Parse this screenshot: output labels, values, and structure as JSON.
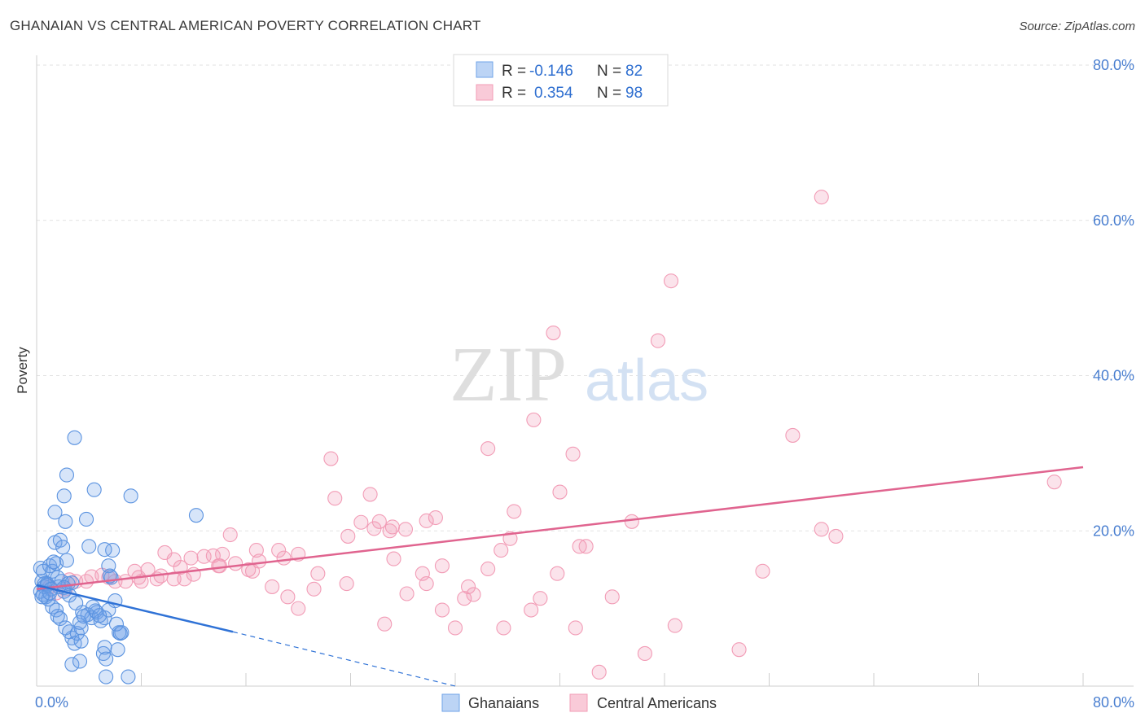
{
  "title": "GHANAIAN VS CENTRAL AMERICAN POVERTY CORRELATION CHART",
  "source": "Source: ZipAtlas.com",
  "watermark": {
    "zip": "ZIP",
    "atlas": "atlas"
  },
  "colors": {
    "blue": "#6fa3e8",
    "blue_line": "#2f72d6",
    "pink": "#f29cb6",
    "pink_line": "#e0648f",
    "accent_text": "#2f6fd0"
  },
  "legend": {
    "rows": [
      {
        "r_label": "R = ",
        "r_value": "-0.146",
        "n_label": "N = ",
        "n_value": "82"
      },
      {
        "r_label": "R = ",
        "r_value": "0.354",
        "n_label": "N = ",
        "n_value": "98"
      }
    ]
  },
  "chart_data": {
    "type": "scatter",
    "title": "GHANAIAN VS CENTRAL AMERICAN POVERTY CORRELATION CHART",
    "xlabel": "",
    "ylabel": "Poverty",
    "xlim": [
      0,
      80
    ],
    "ylim": [
      0,
      80
    ],
    "x_tick_labels": [
      "0.0%",
      "80.0%"
    ],
    "y_ticks": [
      20,
      40,
      60,
      80
    ],
    "y_tick_labels": [
      "20.0%",
      "40.0%",
      "60.0%",
      "80.0%"
    ],
    "grid": true,
    "legend_position": "bottom",
    "series": [
      {
        "name": "Ghanaians",
        "color": "#6fa3e8",
        "trend": {
          "x": [
            0,
            15
          ],
          "y": [
            13.0,
            7.0
          ],
          "dashed_extension": {
            "x": [
              15,
              32
            ],
            "y": [
              7.0,
              0.0
            ]
          }
        },
        "points": [
          [
            0.3,
            15.2
          ],
          [
            0.5,
            14.8
          ],
          [
            0.4,
            13.5
          ],
          [
            0.6,
            12.8
          ],
          [
            0.3,
            12.2
          ],
          [
            0.7,
            11.5
          ],
          [
            0.5,
            11.8
          ],
          [
            0.8,
            13.2
          ],
          [
            1.0,
            15.5
          ],
          [
            1.2,
            14.8
          ],
          [
            1.5,
            15.8
          ],
          [
            1.3,
            16.0
          ],
          [
            1.4,
            18.5
          ],
          [
            1.8,
            18.8
          ],
          [
            2.0,
            17.9
          ],
          [
            2.3,
            16.2
          ],
          [
            1.6,
            14.0
          ],
          [
            1.7,
            12.8
          ],
          [
            2.1,
            12.2
          ],
          [
            1.9,
            13.5
          ],
          [
            2.4,
            13.2
          ],
          [
            1.2,
            10.2
          ],
          [
            1.5,
            9.8
          ],
          [
            1.6,
            9.0
          ],
          [
            1.8,
            8.7
          ],
          [
            2.2,
            7.5
          ],
          [
            2.5,
            7.0
          ],
          [
            2.7,
            6.2
          ],
          [
            2.9,
            5.5
          ],
          [
            3.1,
            6.8
          ],
          [
            3.4,
            7.5
          ],
          [
            3.3,
            8.2
          ],
          [
            3.5,
            9.5
          ],
          [
            3.9,
            9.2
          ],
          [
            4.2,
            8.8
          ],
          [
            4.5,
            9.7
          ],
          [
            4.6,
            9.5
          ],
          [
            4.9,
            8.4
          ],
          [
            5.2,
            8.8
          ],
          [
            5.5,
            9.8
          ],
          [
            2.9,
            32.0
          ],
          [
            2.3,
            27.2
          ],
          [
            2.1,
            24.5
          ],
          [
            4.4,
            25.3
          ],
          [
            1.4,
            22.4
          ],
          [
            2.2,
            21.2
          ],
          [
            3.8,
            21.5
          ],
          [
            7.2,
            24.5
          ],
          [
            12.2,
            22.0
          ],
          [
            2.7,
            2.8
          ],
          [
            3.3,
            3.2
          ],
          [
            3.4,
            5.8
          ],
          [
            5.1,
            4.2
          ],
          [
            5.2,
            5.0
          ],
          [
            5.3,
            3.5
          ],
          [
            6.2,
            4.7
          ],
          [
            6.3,
            6.9
          ],
          [
            6.4,
            6.8
          ],
          [
            7.0,
            1.2
          ],
          [
            5.3,
            1.2
          ],
          [
            5.8,
            17.5
          ],
          [
            5.2,
            17.6
          ],
          [
            4.0,
            18.0
          ],
          [
            5.7,
            14.0
          ],
          [
            5.5,
            15.5
          ],
          [
            6.0,
            11.0
          ],
          [
            5.6,
            14.2
          ],
          [
            2.7,
            13.3
          ],
          [
            2.1,
            12.7
          ],
          [
            0.6,
            13.2
          ],
          [
            0.8,
            13.0
          ],
          [
            0.9,
            11.2
          ],
          [
            1.1,
            12.5
          ],
          [
            0.4,
            11.5
          ],
          [
            1.0,
            12.0
          ],
          [
            2.5,
            11.7
          ],
          [
            3.0,
            10.7
          ],
          [
            3.6,
            9.0
          ],
          [
            4.3,
            10.2
          ],
          [
            6.5,
            6.9
          ],
          [
            6.1,
            8.0
          ],
          [
            4.8,
            9.1
          ]
        ]
      },
      {
        "name": "Central Americans",
        "color": "#f29cb6",
        "trend": {
          "x": [
            0,
            80
          ],
          "y": [
            12.5,
            28.2
          ]
        },
        "points": [
          [
            60.0,
            63.0
          ],
          [
            48.5,
            52.2
          ],
          [
            39.5,
            45.5
          ],
          [
            47.5,
            44.5
          ],
          [
            38.0,
            34.3
          ],
          [
            57.8,
            32.3
          ],
          [
            34.5,
            30.6
          ],
          [
            41.0,
            29.9
          ],
          [
            22.5,
            29.3
          ],
          [
            77.8,
            26.3
          ],
          [
            40.0,
            25.0
          ],
          [
            25.5,
            24.7
          ],
          [
            22.8,
            24.2
          ],
          [
            36.5,
            22.5
          ],
          [
            30.5,
            21.7
          ],
          [
            29.8,
            21.3
          ],
          [
            45.5,
            21.2
          ],
          [
            24.8,
            21.1
          ],
          [
            26.2,
            21.2
          ],
          [
            27.2,
            20.5
          ],
          [
            25.8,
            20.3
          ],
          [
            27.0,
            20.0
          ],
          [
            28.2,
            20.2
          ],
          [
            60.0,
            20.2
          ],
          [
            61.1,
            19.3
          ],
          [
            23.8,
            19.3
          ],
          [
            36.2,
            19.0
          ],
          [
            14.8,
            19.5
          ],
          [
            41.5,
            18.0
          ],
          [
            42.0,
            18.0
          ],
          [
            35.5,
            17.5
          ],
          [
            16.8,
            17.5
          ],
          [
            18.5,
            17.5
          ],
          [
            20.0,
            17.0
          ],
          [
            9.8,
            17.2
          ],
          [
            13.5,
            16.8
          ],
          [
            14.2,
            17.0
          ],
          [
            12.8,
            16.7
          ],
          [
            11.8,
            16.5
          ],
          [
            10.5,
            16.3
          ],
          [
            11.0,
            15.3
          ],
          [
            13.9,
            15.5
          ],
          [
            15.2,
            15.8
          ],
          [
            17.0,
            16.1
          ],
          [
            18.9,
            16.5
          ],
          [
            27.3,
            16.4
          ],
          [
            31.0,
            15.5
          ],
          [
            34.5,
            15.1
          ],
          [
            29.5,
            14.5
          ],
          [
            21.5,
            14.5
          ],
          [
            16.5,
            14.8
          ],
          [
            12.0,
            14.4
          ],
          [
            7.5,
            14.8
          ],
          [
            8.5,
            15.0
          ],
          [
            9.5,
            14.2
          ],
          [
            10.5,
            13.8
          ],
          [
            8.0,
            13.5
          ],
          [
            7.8,
            14.0
          ],
          [
            6.0,
            13.5
          ],
          [
            5.0,
            14.3
          ],
          [
            4.2,
            14.1
          ],
          [
            3.8,
            13.5
          ],
          [
            2.5,
            13.7
          ],
          [
            3.0,
            13.5
          ],
          [
            2.2,
            12.5
          ],
          [
            1.5,
            12.0
          ],
          [
            1.0,
            12.8
          ],
          [
            0.8,
            13.0
          ],
          [
            29.8,
            13.2
          ],
          [
            33.0,
            12.8
          ],
          [
            23.7,
            13.2
          ],
          [
            18.0,
            12.8
          ],
          [
            21.2,
            12.5
          ],
          [
            28.3,
            11.9
          ],
          [
            32.7,
            11.3
          ],
          [
            33.4,
            11.8
          ],
          [
            39.8,
            14.5
          ],
          [
            55.5,
            14.8
          ],
          [
            44.0,
            11.5
          ],
          [
            38.5,
            11.3
          ],
          [
            19.2,
            11.5
          ],
          [
            20.0,
            10.0
          ],
          [
            31.0,
            9.8
          ],
          [
            37.8,
            9.8
          ],
          [
            26.6,
            8.0
          ],
          [
            35.7,
            7.5
          ],
          [
            41.2,
            7.5
          ],
          [
            48.8,
            7.8
          ],
          [
            32.0,
            7.5
          ],
          [
            53.7,
            4.7
          ],
          [
            46.5,
            4.2
          ],
          [
            43.0,
            1.8
          ],
          [
            16.2,
            15.0
          ],
          [
            14.0,
            15.5
          ],
          [
            9.2,
            13.8
          ],
          [
            6.8,
            13.5
          ],
          [
            11.3,
            13.8
          ],
          [
            5.5,
            14.0
          ]
        ]
      }
    ]
  },
  "bottom_legend": {
    "items": [
      "Ghanaians",
      "Central Americans"
    ]
  }
}
